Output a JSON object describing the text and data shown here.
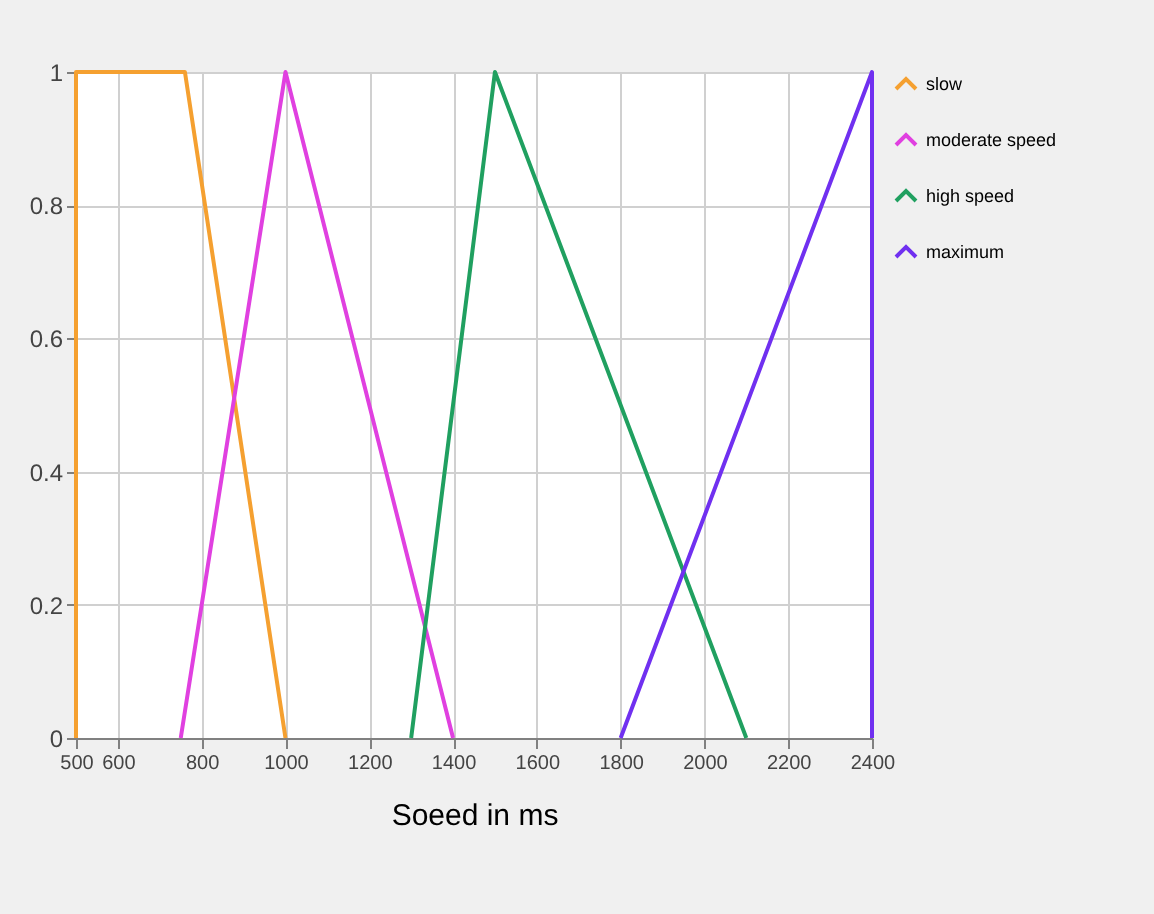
{
  "chart_data": {
    "type": "line",
    "xlabel": "Soeed in ms",
    "xlim": [
      500,
      2400
    ],
    "xticks": [
      500,
      600,
      800,
      1000,
      1200,
      1400,
      1600,
      1800,
      2000,
      2200,
      2400
    ],
    "ylim": [
      0,
      1
    ],
    "yticks": [
      0,
      0.2,
      0.4,
      0.6,
      0.8,
      1
    ],
    "grid": true,
    "legend": "right",
    "marker": "none",
    "line_style": "solid",
    "series": [
      {
        "name": "slow",
        "color": "#f5a030",
        "x": [
          500,
          500,
          760,
          1000
        ],
        "values": [
          0,
          1,
          1,
          0
        ]
      },
      {
        "name": "moderate speed",
        "color": "#e040e0",
        "x": [
          750,
          1000,
          1400
        ],
        "values": [
          0,
          1,
          0
        ]
      },
      {
        "name": "high speed",
        "color": "#20a060",
        "x": [
          1300,
          1500,
          2100
        ],
        "values": [
          0,
          1,
          0
        ]
      },
      {
        "name": "maximum",
        "color": "#7030f0",
        "x": [
          1800,
          2400,
          2400
        ],
        "values": [
          0,
          1,
          0
        ]
      }
    ]
  }
}
